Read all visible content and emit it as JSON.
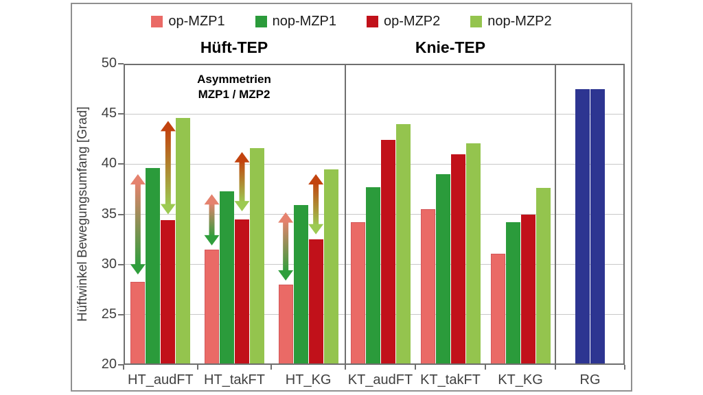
{
  "chart_data": {
    "type": "bar",
    "title": "",
    "ylabel": "Hüftwinkel Bewegungsumfang [Grad]",
    "ylim": [
      20,
      50
    ],
    "yticks": [
      50,
      45,
      40,
      35,
      30,
      25,
      20
    ],
    "grid": true,
    "legend_position": "top",
    "section_headers": [
      "Hüft-TEP",
      "Knie-TEP"
    ],
    "annotation": {
      "line1": "Asymmetrien",
      "line2": "MZP1 / MZP2"
    },
    "categories": [
      "HT_audFT",
      "HT_takFT",
      "HT_KG",
      "KT_audFT",
      "KT_takFT",
      "KT_KG",
      "RG"
    ],
    "series": [
      {
        "name": "op-MZP1",
        "color": "#ea6a66",
        "values": [
          28.3,
          31.5,
          28.0,
          34.2,
          35.5,
          31.1
        ]
      },
      {
        "name": "nop-MZP1",
        "color": "#2b9b3b",
        "values": [
          39.6,
          37.3,
          35.9,
          37.7,
          39.0,
          34.2
        ]
      },
      {
        "name": "op-MZP2",
        "color": "#c1111a",
        "values": [
          34.4,
          34.5,
          32.5,
          42.4,
          41.0,
          35.0
        ]
      },
      {
        "name": "nop-MZP2",
        "color": "#94c44e",
        "values": [
          44.6,
          41.6,
          39.5,
          44.0,
          42.1,
          37.6
        ]
      }
    ],
    "reference_group": {
      "label": "RG",
      "color": "#2d3591",
      "values": [
        47.5,
        47.5
      ]
    },
    "asymmetry_arrows": [
      {
        "category": "HT_audFT",
        "pair": "MZP1",
        "low": 29.0,
        "high": 39.0
      },
      {
        "category": "HT_audFT",
        "pair": "MZP2",
        "low": 35.0,
        "high": 44.3
      },
      {
        "category": "HT_takFT",
        "pair": "MZP1",
        "low": 31.9,
        "high": 37.0
      },
      {
        "category": "HT_takFT",
        "pair": "MZP2",
        "low": 35.3,
        "high": 41.2
      },
      {
        "category": "HT_KG",
        "pair": "MZP1",
        "low": 28.4,
        "high": 35.2
      },
      {
        "category": "HT_KG",
        "pair": "MZP2",
        "low": 33.0,
        "high": 39.0
      }
    ],
    "arrow_styles": {
      "MZP1": {
        "top": "#e5826e",
        "bottom": "#2f9e3c"
      },
      "MZP2": {
        "top": "#c2430e",
        "bottom": "#9cca52"
      }
    }
  }
}
